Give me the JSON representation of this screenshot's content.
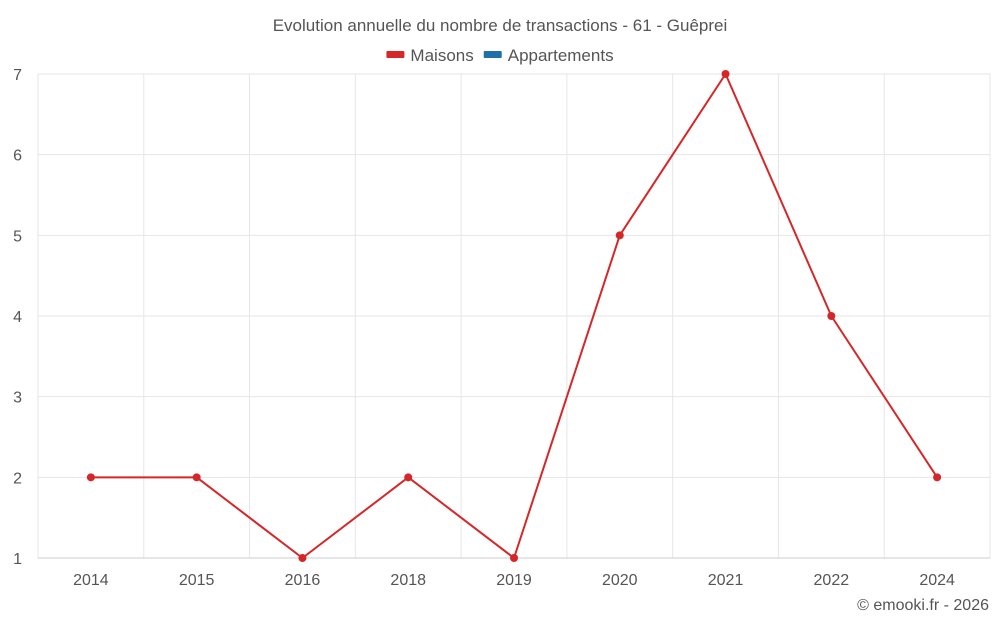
{
  "chart_data": {
    "type": "line",
    "title": "Evolution annuelle du nombre de transactions - 61 - Guêprei",
    "categories": [
      "2014",
      "2015",
      "2016",
      "2018",
      "2019",
      "2020",
      "2021",
      "2022",
      "2024"
    ],
    "series": [
      {
        "name": "Maisons",
        "color": "#d62728",
        "values": [
          2,
          2,
          1,
          2,
          1,
          5,
          7,
          4,
          2
        ]
      }
    ],
    "legend": [
      {
        "name": "Maisons",
        "color": "#d62728"
      },
      {
        "name": "Appartements",
        "color": "#1f6fa8"
      }
    ],
    "legend_position": "top-center",
    "ylim": [
      1,
      7
    ],
    "yticks": [
      1,
      2,
      3,
      4,
      5,
      6,
      7
    ],
    "grid": true,
    "xlabel": "",
    "ylabel": ""
  },
  "credit": "© emooki.fr - 2026",
  "colors": {
    "grid": "#e6e6e6",
    "text": "#555555",
    "axis": "#cccccc"
  }
}
